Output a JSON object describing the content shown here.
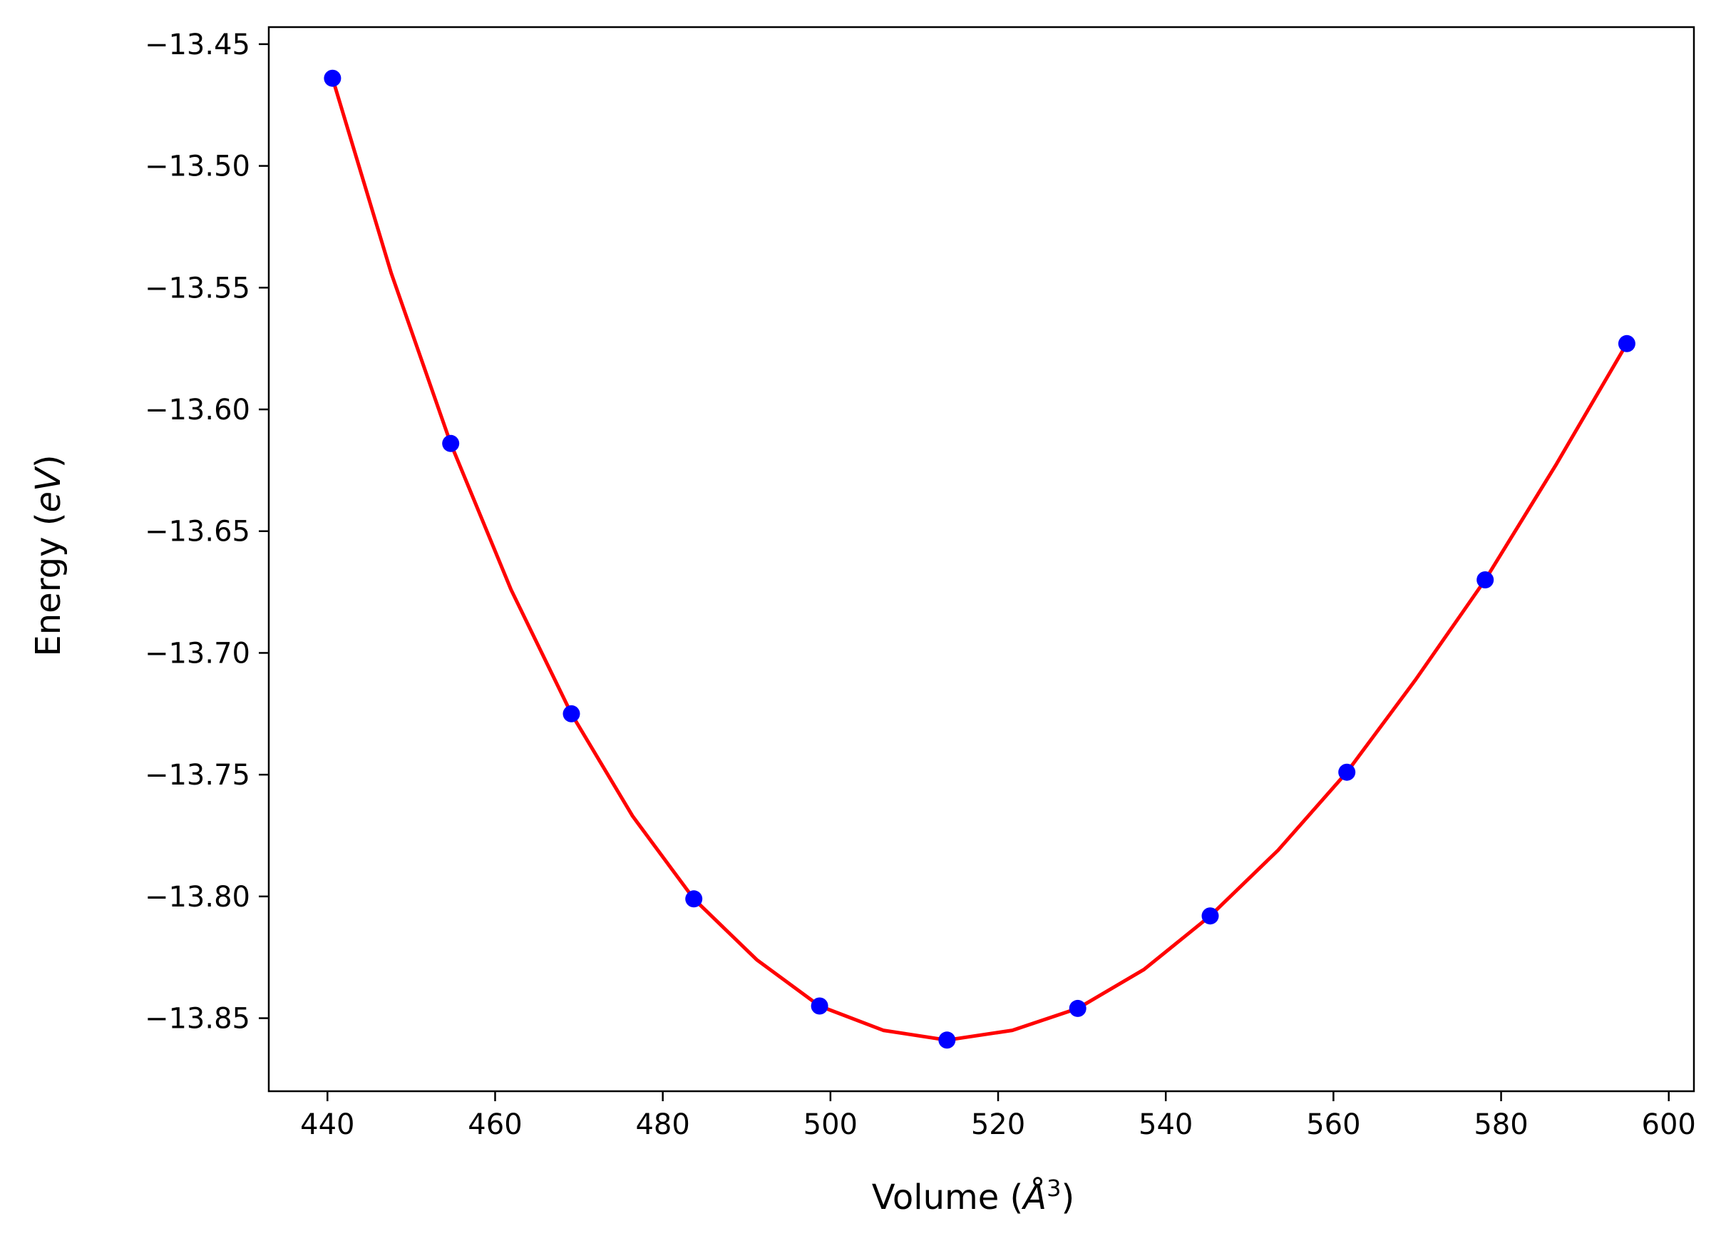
{
  "chart_data": {
    "type": "scatter",
    "title": "",
    "xlabel": {
      "prefix": "Volume (",
      "unit": "Å",
      "exponent": "3",
      "suffix": ")"
    },
    "ylabel": {
      "prefix": "Energy (",
      "unit": "eV",
      "suffix": ")"
    },
    "xlim": [
      433,
      603
    ],
    "ylim": [
      -13.88,
      -13.443
    ],
    "x_ticks": [
      440,
      460,
      480,
      500,
      520,
      540,
      560,
      580,
      600
    ],
    "x_tick_labels": [
      "440",
      "460",
      "480",
      "500",
      "520",
      "540",
      "560",
      "580",
      "600"
    ],
    "y_ticks": [
      -13.45,
      -13.5,
      -13.55,
      -13.6,
      -13.65,
      -13.7,
      -13.75,
      -13.8,
      -13.85
    ],
    "y_tick_labels": [
      "−13.45",
      "−13.50",
      "−13.55",
      "−13.60",
      "−13.65",
      "−13.70",
      "−13.75",
      "−13.80",
      "−13.85"
    ],
    "grid": false,
    "series": [
      {
        "kind": "points",
        "color": "#0000ff",
        "x": [
          440.6,
          454.7,
          469.1,
          483.7,
          498.7,
          513.9,
          529.5,
          545.3,
          561.6,
          578.1,
          595.0
        ],
        "y": [
          -13.464,
          -13.614,
          -13.725,
          -13.801,
          -13.845,
          -13.859,
          -13.846,
          -13.808,
          -13.749,
          -13.67,
          -13.573
        ]
      },
      {
        "kind": "fit-line",
        "color": "#ff0000",
        "x": [
          440.6,
          447.6,
          454.7,
          461.9,
          469.1,
          476.4,
          483.7,
          491.2,
          498.7,
          506.3,
          513.9,
          521.7,
          529.5,
          537.4,
          545.3,
          553.4,
          561.6,
          569.8,
          578.1,
          586.5,
          595.0
        ],
        "y": [
          -13.464,
          -13.544,
          -13.614,
          -13.674,
          -13.725,
          -13.767,
          -13.801,
          -13.826,
          -13.845,
          -13.855,
          -13.859,
          -13.855,
          -13.846,
          -13.83,
          -13.808,
          -13.781,
          -13.749,
          -13.711,
          -13.67,
          -13.623,
          -13.573
        ]
      }
    ]
  }
}
